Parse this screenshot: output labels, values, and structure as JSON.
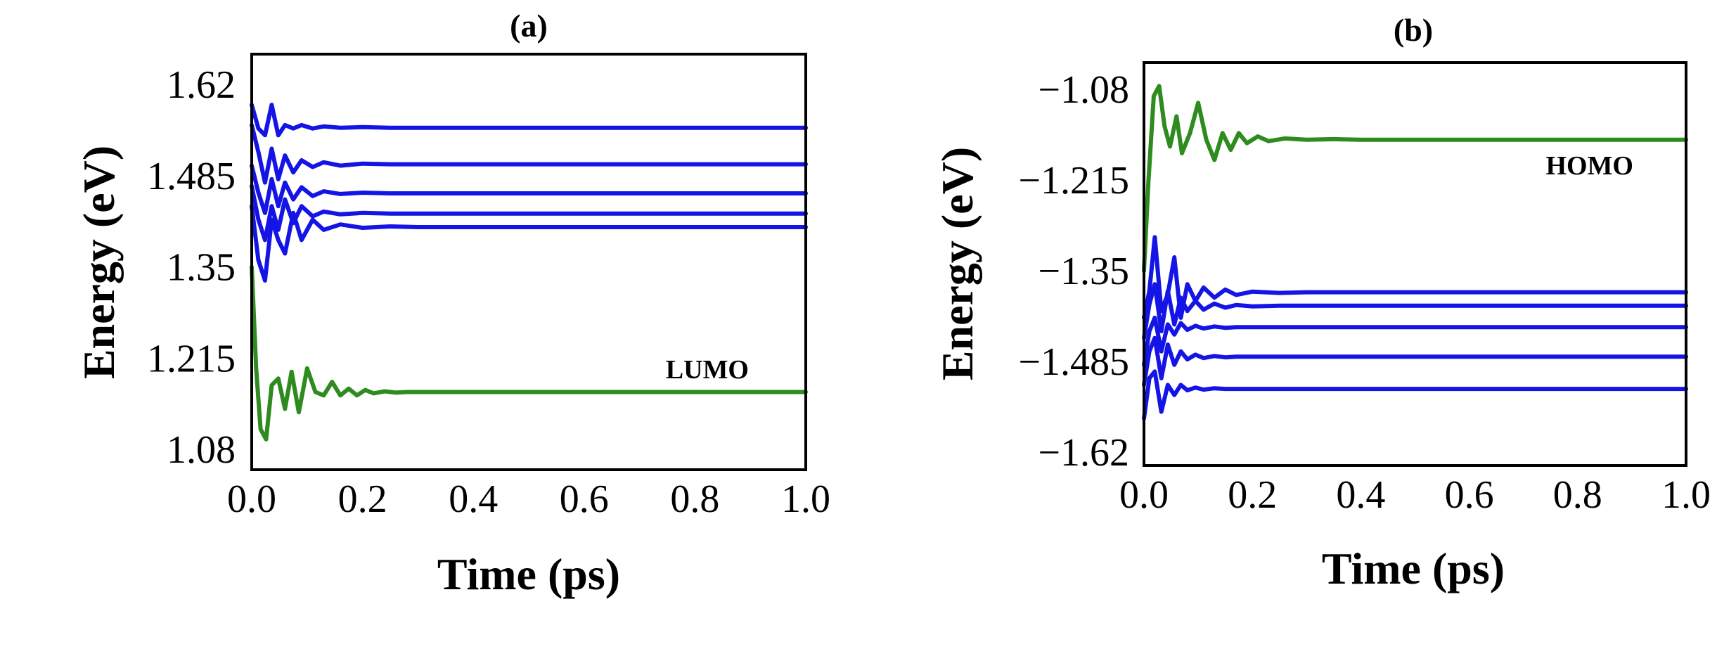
{
  "colors": {
    "blue": "#1414e6",
    "green": "#2e8b1e",
    "frame": "#000000"
  },
  "chart_data": [
    {
      "type": "line",
      "title": "(a)",
      "xlabel": "Time (ps)",
      "ylabel": "Energy (eV)",
      "annotation": "LUMO",
      "xlim": [
        0,
        1.0
      ],
      "ylim": [
        1.05,
        1.665
      ],
      "xticks": [
        "0.0",
        "0.2",
        "0.4",
        "0.6",
        "0.8",
        "1.0"
      ],
      "xtick_values": [
        0,
        0.2,
        0.4,
        0.6,
        0.8,
        1.0
      ],
      "yticks": [
        "1.62",
        "1.485",
        "1.35",
        "1.215",
        "1.08"
      ],
      "ytick_values": [
        1.62,
        1.485,
        1.35,
        1.215,
        1.08
      ],
      "grid": false,
      "series": [
        {
          "color": "blue",
          "x": [
            0,
            0.012,
            0.024,
            0.036,
            0.048,
            0.06,
            0.075,
            0.09,
            0.11,
            0.13,
            0.16,
            0.2,
            0.25,
            0.3,
            0.4,
            1.0
          ],
          "y": [
            1.59,
            1.555,
            1.545,
            1.59,
            1.545,
            1.56,
            1.555,
            1.56,
            1.555,
            1.558,
            1.556,
            1.557,
            1.556,
            1.556,
            1.556,
            1.556
          ]
        },
        {
          "color": "blue",
          "x": [
            0,
            0.012,
            0.024,
            0.036,
            0.048,
            0.06,
            0.075,
            0.09,
            0.11,
            0.13,
            0.16,
            0.2,
            0.25,
            0.3,
            0.4,
            1.0
          ],
          "y": [
            1.56,
            1.52,
            1.475,
            1.525,
            1.48,
            1.515,
            1.49,
            1.508,
            1.498,
            1.505,
            1.5,
            1.503,
            1.502,
            1.502,
            1.502,
            1.502
          ]
        },
        {
          "color": "blue",
          "x": [
            0,
            0.012,
            0.024,
            0.036,
            0.048,
            0.06,
            0.075,
            0.09,
            0.11,
            0.13,
            0.16,
            0.2,
            0.25,
            0.3,
            0.4,
            1.0
          ],
          "y": [
            1.5,
            1.46,
            1.43,
            1.48,
            1.44,
            1.475,
            1.45,
            1.468,
            1.455,
            1.462,
            1.458,
            1.46,
            1.459,
            1.459,
            1.459,
            1.459
          ]
        },
        {
          "color": "blue",
          "x": [
            0,
            0.012,
            0.024,
            0.036,
            0.048,
            0.06,
            0.075,
            0.09,
            0.11,
            0.13,
            0.16,
            0.2,
            0.25,
            0.3,
            0.4,
            1.0
          ],
          "y": [
            1.47,
            1.42,
            1.39,
            1.44,
            1.405,
            1.45,
            1.415,
            1.44,
            1.425,
            1.432,
            1.428,
            1.43,
            1.429,
            1.429,
            1.429,
            1.429
          ]
        },
        {
          "color": "blue",
          "x": [
            0,
            0.012,
            0.024,
            0.036,
            0.048,
            0.06,
            0.075,
            0.09,
            0.11,
            0.13,
            0.16,
            0.2,
            0.25,
            0.3,
            0.4,
            1.0
          ],
          "y": [
            1.44,
            1.36,
            1.33,
            1.42,
            1.39,
            1.37,
            1.43,
            1.39,
            1.42,
            1.405,
            1.413,
            1.408,
            1.41,
            1.409,
            1.409,
            1.409
          ]
        },
        {
          "color": "green",
          "x": [
            0,
            0.008,
            0.016,
            0.026,
            0.036,
            0.048,
            0.06,
            0.072,
            0.085,
            0.1,
            0.115,
            0.13,
            0.145,
            0.16,
            0.175,
            0.19,
            0.205,
            0.22,
            0.24,
            0.26,
            0.28,
            0.3,
            0.35,
            0.4,
            1.0
          ],
          "y": [
            1.35,
            1.2,
            1.11,
            1.095,
            1.175,
            1.185,
            1.14,
            1.195,
            1.135,
            1.2,
            1.165,
            1.16,
            1.18,
            1.16,
            1.17,
            1.16,
            1.168,
            1.163,
            1.166,
            1.164,
            1.165,
            1.165,
            1.165,
            1.165,
            1.165
          ]
        }
      ]
    },
    {
      "type": "line",
      "title": "(b)",
      "xlabel": "Time (ps)",
      "ylabel": "Energy (eV)",
      "annotation": "HOMO",
      "xlim": [
        0,
        1.0
      ],
      "ylim": [
        -1.64,
        -1.04
      ],
      "xticks": [
        "0.0",
        "0.2",
        "0.4",
        "0.6",
        "0.8",
        "1.0"
      ],
      "xtick_values": [
        0,
        0.2,
        0.4,
        0.6,
        0.8,
        1.0
      ],
      "yticks": [
        "−1.08",
        "−1.215",
        "−1.35",
        "−1.485",
        "−1.62"
      ],
      "ytick_values": [
        -1.08,
        -1.215,
        -1.35,
        -1.485,
        -1.62
      ],
      "grid": false,
      "series": [
        {
          "color": "green",
          "x": [
            0,
            0.008,
            0.018,
            0.028,
            0.038,
            0.048,
            0.06,
            0.07,
            0.085,
            0.1,
            0.115,
            0.13,
            0.145,
            0.16,
            0.175,
            0.19,
            0.21,
            0.23,
            0.26,
            0.3,
            0.35,
            0.4,
            1.0
          ],
          "y": [
            -1.35,
            -1.22,
            -1.09,
            -1.075,
            -1.135,
            -1.165,
            -1.12,
            -1.175,
            -1.145,
            -1.1,
            -1.155,
            -1.185,
            -1.145,
            -1.17,
            -1.145,
            -1.16,
            -1.15,
            -1.157,
            -1.153,
            -1.155,
            -1.154,
            -1.155,
            -1.155
          ]
        },
        {
          "color": "blue",
          "x": [
            0,
            0.01,
            0.02,
            0.032,
            0.044,
            0.056,
            0.068,
            0.08,
            0.095,
            0.11,
            0.13,
            0.15,
            0.17,
            0.2,
            0.25,
            0.3,
            0.4,
            1.0
          ],
          "y": [
            -1.42,
            -1.38,
            -1.3,
            -1.41,
            -1.385,
            -1.33,
            -1.42,
            -1.37,
            -1.395,
            -1.375,
            -1.39,
            -1.378,
            -1.386,
            -1.381,
            -1.383,
            -1.382,
            -1.382,
            -1.382
          ]
        },
        {
          "color": "blue",
          "x": [
            0,
            0.01,
            0.02,
            0.032,
            0.044,
            0.056,
            0.068,
            0.08,
            0.095,
            0.11,
            0.13,
            0.15,
            0.17,
            0.2,
            0.25,
            0.3,
            0.4,
            1.0
          ],
          "y": [
            -1.45,
            -1.4,
            -1.37,
            -1.44,
            -1.38,
            -1.43,
            -1.39,
            -1.41,
            -1.395,
            -1.408,
            -1.399,
            -1.405,
            -1.401,
            -1.403,
            -1.402,
            -1.402,
            -1.402,
            -1.402
          ]
        },
        {
          "color": "blue",
          "x": [
            0,
            0.01,
            0.02,
            0.032,
            0.044,
            0.056,
            0.068,
            0.08,
            0.095,
            0.11,
            0.13,
            0.15,
            0.17,
            0.2,
            0.25,
            0.3,
            0.4,
            1.0
          ],
          "y": [
            -1.49,
            -1.44,
            -1.42,
            -1.47,
            -1.43,
            -1.445,
            -1.428,
            -1.438,
            -1.432,
            -1.436,
            -1.433,
            -1.435,
            -1.434,
            -1.434,
            -1.434,
            -1.434,
            -1.434,
            -1.434
          ]
        },
        {
          "color": "blue",
          "x": [
            0,
            0.01,
            0.02,
            0.032,
            0.044,
            0.056,
            0.068,
            0.08,
            0.095,
            0.11,
            0.13,
            0.15,
            0.17,
            0.2,
            0.25,
            0.3,
            0.4,
            1.0
          ],
          "y": [
            -1.52,
            -1.47,
            -1.45,
            -1.51,
            -1.46,
            -1.49,
            -1.47,
            -1.482,
            -1.475,
            -1.48,
            -1.477,
            -1.479,
            -1.478,
            -1.478,
            -1.478,
            -1.478,
            -1.478,
            -1.478
          ]
        },
        {
          "color": "blue",
          "x": [
            0,
            0.01,
            0.02,
            0.032,
            0.044,
            0.056,
            0.068,
            0.08,
            0.095,
            0.11,
            0.13,
            0.15,
            0.17,
            0.2,
            0.25,
            0.3,
            0.4,
            1.0
          ],
          "y": [
            -1.57,
            -1.51,
            -1.5,
            -1.56,
            -1.52,
            -1.535,
            -1.52,
            -1.528,
            -1.524,
            -1.527,
            -1.525,
            -1.526,
            -1.526,
            -1.526,
            -1.526,
            -1.526,
            -1.526,
            -1.526
          ]
        }
      ]
    }
  ]
}
